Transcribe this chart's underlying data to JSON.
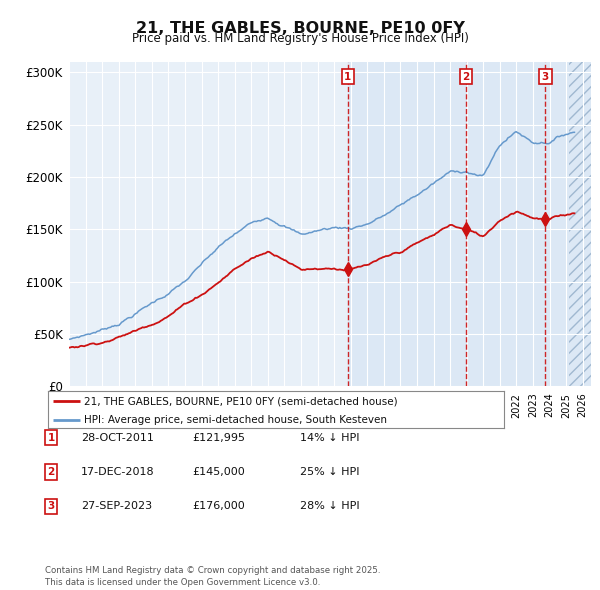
{
  "title": "21, THE GABLES, BOURNE, PE10 0FY",
  "subtitle": "Price paid vs. HM Land Registry's House Price Index (HPI)",
  "ylim": [
    0,
    310000
  ],
  "yticks": [
    0,
    50000,
    100000,
    150000,
    200000,
    250000,
    300000
  ],
  "ytick_labels": [
    "£0",
    "£50K",
    "£100K",
    "£150K",
    "£200K",
    "£250K",
    "£300K"
  ],
  "xlim_start": 1995.0,
  "xlim_end": 2026.5,
  "shade_start": 2011.83,
  "hatch_start": 2025.2,
  "bg_color": "#e8f0f8",
  "shade_color": "#dce8f5",
  "grid_color": "#ffffff",
  "sale_dates": [
    2011.83,
    2018.96,
    2023.75
  ],
  "sale_labels": [
    "1",
    "2",
    "3"
  ],
  "sale_prices": [
    121995,
    145000,
    176000
  ],
  "sale_info": [
    {
      "num": "1",
      "date": "28-OCT-2011",
      "price": "£121,995",
      "pct": "14% ↓ HPI"
    },
    {
      "num": "2",
      "date": "17-DEC-2018",
      "price": "£145,000",
      "pct": "25% ↓ HPI"
    },
    {
      "num": "3",
      "date": "27-SEP-2023",
      "price": "£176,000",
      "pct": "28% ↓ HPI"
    }
  ],
  "legend_line1": "21, THE GABLES, BOURNE, PE10 0FY (semi-detached house)",
  "legend_line2": "HPI: Average price, semi-detached house, South Kesteven",
  "footer": "Contains HM Land Registry data © Crown copyright and database right 2025.\nThis data is licensed under the Open Government Licence v3.0.",
  "red_color": "#cc1111",
  "blue_color": "#6699cc",
  "hpi_anchors_x": [
    1995,
    1996,
    1997,
    1998,
    1999,
    2000,
    2001,
    2002,
    2003,
    2004,
    2005,
    2006,
    2007,
    2008,
    2009,
    2010,
    2011,
    2012,
    2013,
    2014,
    2015,
    2016,
    2017,
    2018,
    2019,
    2020,
    2021,
    2022,
    2023,
    2024,
    2025,
    2025.5
  ],
  "hpi_anchors_y": [
    45000,
    50000,
    55000,
    62000,
    72000,
    82000,
    92000,
    103000,
    118000,
    133000,
    145000,
    155000,
    163000,
    157000,
    148000,
    152000,
    155000,
    155000,
    160000,
    168000,
    177000,
    187000,
    198000,
    208000,
    210000,
    205000,
    235000,
    248000,
    238000,
    240000,
    248000,
    250000
  ],
  "pp_anchors_x": [
    1995,
    1996,
    1997,
    1998,
    1999,
    2000,
    2001,
    2002,
    2003,
    2004,
    2005,
    2006,
    2007,
    2008,
    2009,
    2010,
    2011,
    2012,
    2013,
    2014,
    2015,
    2016,
    2017,
    2018,
    2019,
    2020,
    2021,
    2022,
    2023,
    2024,
    2025,
    2025.5
  ],
  "pp_anchors_y": [
    37000,
    40000,
    44000,
    49000,
    55000,
    63000,
    72000,
    83000,
    93000,
    105000,
    118000,
    128000,
    135000,
    130000,
    120000,
    122000,
    123000,
    122000,
    125000,
    130000,
    135000,
    143000,
    150000,
    160000,
    155000,
    148000,
    165000,
    175000,
    170000,
    168000,
    172000,
    174000
  ]
}
